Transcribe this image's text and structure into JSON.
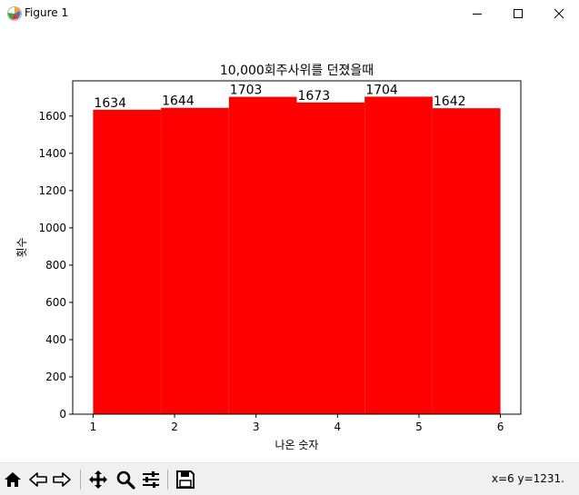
{
  "window": {
    "title": "Figure 1",
    "minimize_icon": "minimize-icon",
    "maximize_icon": "maximize-icon",
    "close_icon": "close-icon"
  },
  "chart_data": {
    "type": "bar",
    "title": "10,000회주사위를 던졌을때",
    "xlabel": "나온 숫자",
    "ylabel": "횟수",
    "categories": [
      "1",
      "2",
      "3",
      "4",
      "5",
      "6"
    ],
    "values": [
      1634,
      1644,
      1703,
      1673,
      1704,
      1642
    ],
    "bar_color": "#ff0000",
    "xlim": [
      0.75,
      6.25
    ],
    "ylim": [
      0,
      1789
    ],
    "xticks": [
      1,
      2,
      3,
      4,
      5,
      6
    ],
    "yticks": [
      0,
      200,
      400,
      600,
      800,
      1000,
      1200,
      1400,
      1600
    ],
    "grid": false,
    "legend": "none"
  },
  "toolbar": {
    "buttons": [
      {
        "name": "home-icon",
        "tooltip": "Home"
      },
      {
        "name": "back-icon",
        "tooltip": "Back"
      },
      {
        "name": "forward-icon",
        "tooltip": "Forward"
      },
      {
        "name": "pan-icon",
        "tooltip": "Pan"
      },
      {
        "name": "zoom-icon",
        "tooltip": "Zoom"
      },
      {
        "name": "configure-subplots-icon",
        "tooltip": "Subplots"
      },
      {
        "name": "save-icon",
        "tooltip": "Save"
      }
    ],
    "coords": "x=6 y=1231."
  }
}
